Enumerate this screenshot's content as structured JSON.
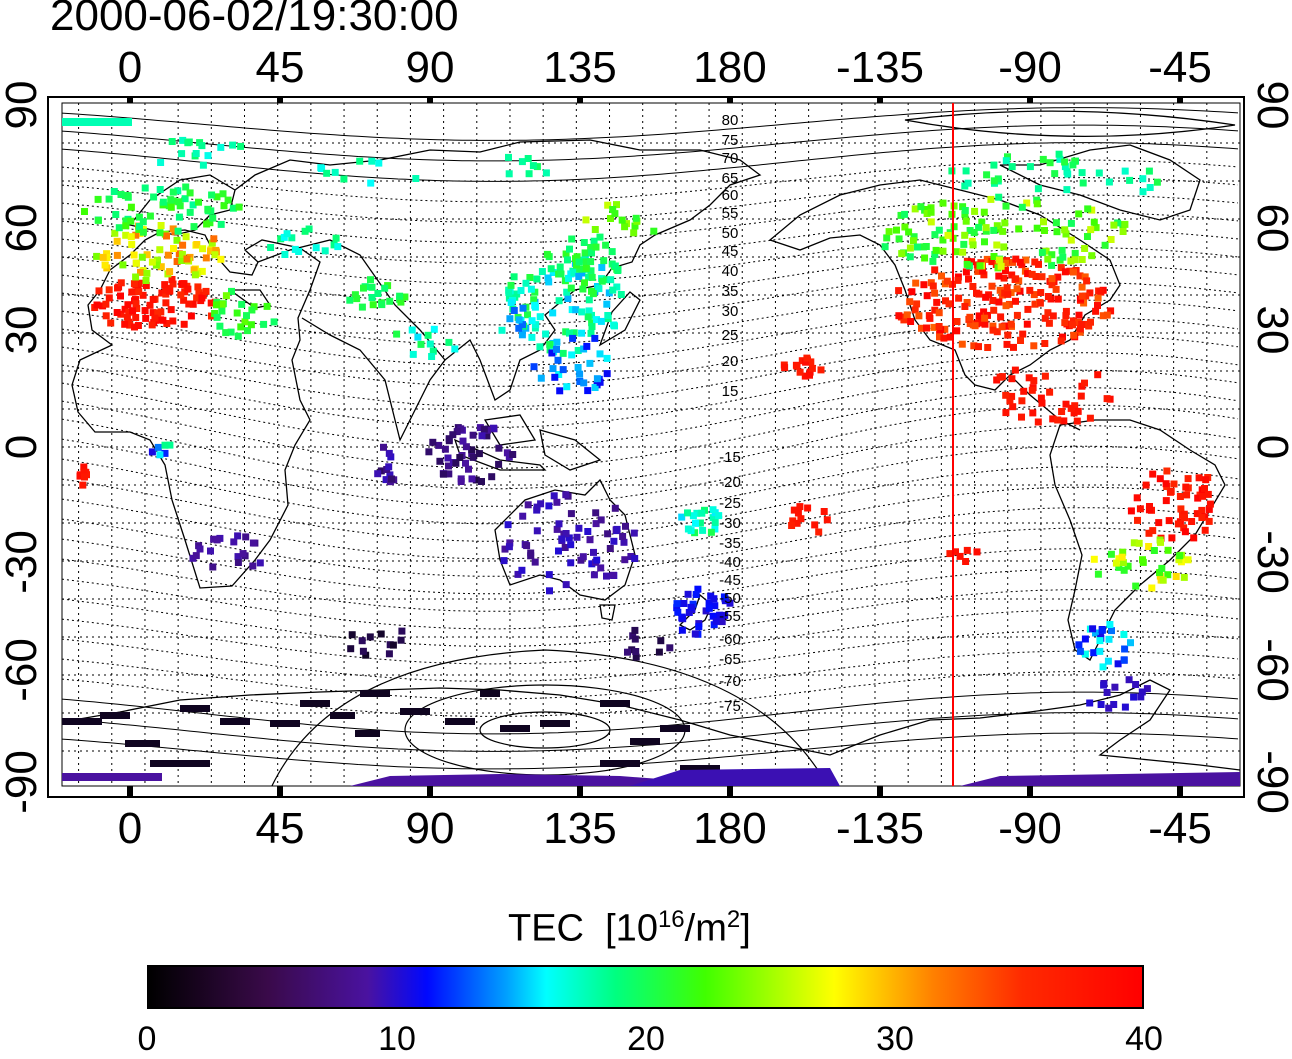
{
  "timestamp": "2000-06-02/19:30:00",
  "map": {
    "x_tick_labels": [
      "0",
      "45",
      "90",
      "135",
      "180",
      "-135",
      "-90",
      "-45"
    ],
    "y_tick_labels": [
      "90",
      "60",
      "30",
      "0",
      "-30",
      "-60",
      "-90"
    ],
    "contour_labels": [
      "80",
      "75",
      "70",
      "65",
      "60",
      "55",
      "50",
      "45",
      "40",
      "35",
      "30",
      "25",
      "20",
      "15",
      "-15",
      "-20",
      "-25",
      "-30",
      "-35",
      "-40",
      "-45",
      "-50",
      "-55",
      "-60",
      "-65",
      "-70",
      "-75"
    ],
    "marker_longitude": -113,
    "marker_color": "#ff0000"
  },
  "colorbar": {
    "title": "TEC",
    "unit_prefix": "[10",
    "unit_exp": "16",
    "unit_mid": "/m",
    "unit_exp2": "2",
    "unit_suffix": "]",
    "tick_labels": [
      "0",
      "10",
      "20",
      "30",
      "40"
    ],
    "min": 0,
    "max": 40
  }
}
